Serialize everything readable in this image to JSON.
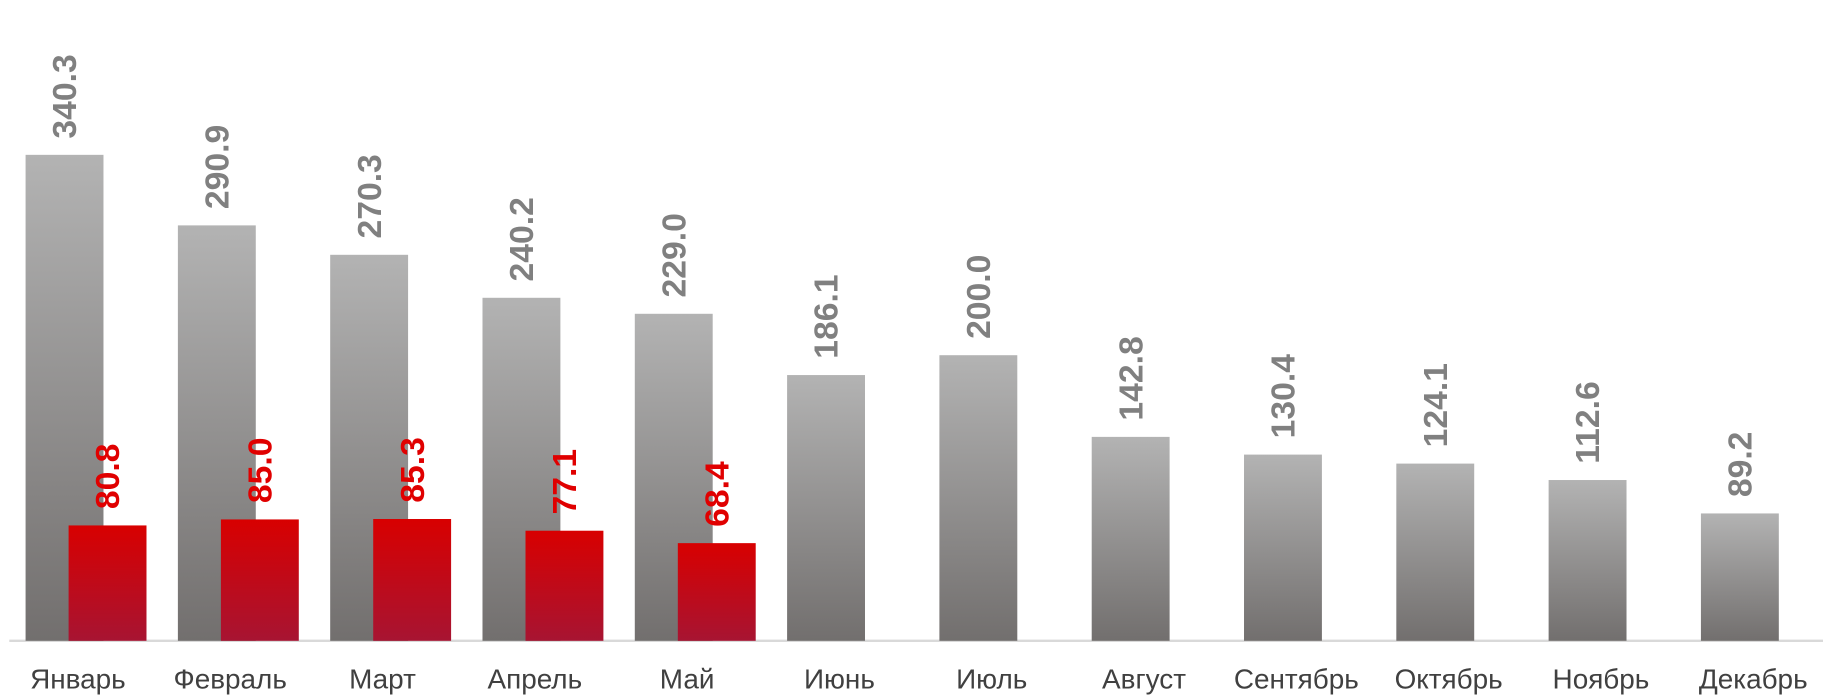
{
  "chart_data": {
    "type": "bar",
    "categories": [
      "Январь",
      "Февраль",
      "Март",
      "Апрель",
      "Май",
      "Июнь",
      "Июль",
      "Август",
      "Сентябрь",
      "Октябрь",
      "Ноябрь",
      "Декабрь"
    ],
    "series": [
      {
        "color": "#b3b3b3",
        "label_color": "#808080",
        "values": [
          340.3,
          290.9,
          270.3,
          240.2,
          229.0,
          186.1,
          200.0,
          142.8,
          130.4,
          124.1,
          112.6,
          89.2
        ],
        "value_labels": [
          "340.3",
          "290.9",
          "270.3",
          "240.2",
          "229.0",
          "186.1",
          "200.0",
          "142.8",
          "130.4",
          "124.1",
          "112.6",
          "89.2"
        ]
      },
      {
        "color": "#d80000",
        "label_color": "#e00000",
        "values": [
          80.8,
          85.0,
          85.3,
          77.1,
          68.4,
          null,
          null,
          null,
          null,
          null,
          null,
          null
        ],
        "value_labels": [
          "80.8",
          "85.0",
          "85.3",
          "77.1",
          "68.4",
          null,
          null,
          null,
          null,
          null,
          null,
          null
        ]
      }
    ]
  }
}
